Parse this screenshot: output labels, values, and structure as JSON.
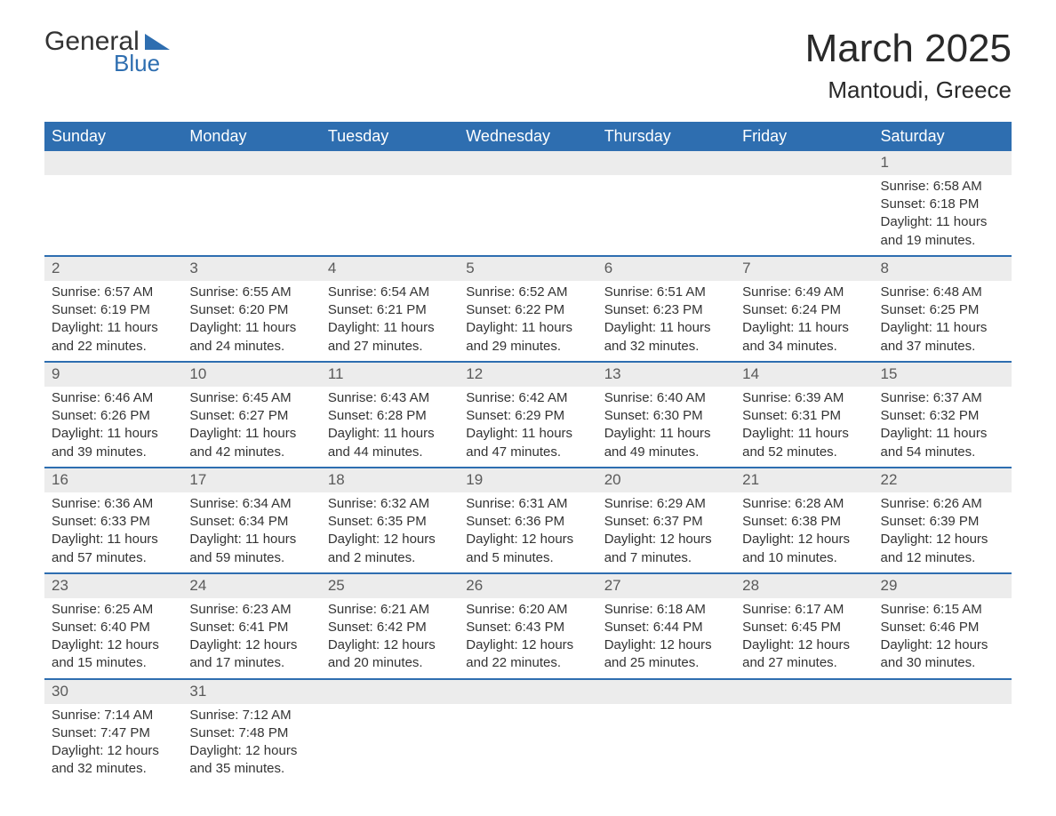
{
  "logo": {
    "text1": "General",
    "text2": "Blue"
  },
  "title": {
    "month": "March 2025",
    "location": "Mantoudi, Greece"
  },
  "colors": {
    "header_bg": "#2e6eb0",
    "header_text": "#ffffff",
    "daynum_bg": "#ececec",
    "row_divider": "#2e6eb0",
    "text": "#333333",
    "logo_accent": "#2e6eb0"
  },
  "day_headers": [
    "Sunday",
    "Monday",
    "Tuesday",
    "Wednesday",
    "Thursday",
    "Friday",
    "Saturday"
  ],
  "weeks": [
    [
      null,
      null,
      null,
      null,
      null,
      null,
      {
        "n": "1",
        "sr": "Sunrise: 6:58 AM",
        "ss": "Sunset: 6:18 PM",
        "dl": "Daylight: 11 hours and 19 minutes."
      }
    ],
    [
      {
        "n": "2",
        "sr": "Sunrise: 6:57 AM",
        "ss": "Sunset: 6:19 PM",
        "dl": "Daylight: 11 hours and 22 minutes."
      },
      {
        "n": "3",
        "sr": "Sunrise: 6:55 AM",
        "ss": "Sunset: 6:20 PM",
        "dl": "Daylight: 11 hours and 24 minutes."
      },
      {
        "n": "4",
        "sr": "Sunrise: 6:54 AM",
        "ss": "Sunset: 6:21 PM",
        "dl": "Daylight: 11 hours and 27 minutes."
      },
      {
        "n": "5",
        "sr": "Sunrise: 6:52 AM",
        "ss": "Sunset: 6:22 PM",
        "dl": "Daylight: 11 hours and 29 minutes."
      },
      {
        "n": "6",
        "sr": "Sunrise: 6:51 AM",
        "ss": "Sunset: 6:23 PM",
        "dl": "Daylight: 11 hours and 32 minutes."
      },
      {
        "n": "7",
        "sr": "Sunrise: 6:49 AM",
        "ss": "Sunset: 6:24 PM",
        "dl": "Daylight: 11 hours and 34 minutes."
      },
      {
        "n": "8",
        "sr": "Sunrise: 6:48 AM",
        "ss": "Sunset: 6:25 PM",
        "dl": "Daylight: 11 hours and 37 minutes."
      }
    ],
    [
      {
        "n": "9",
        "sr": "Sunrise: 6:46 AM",
        "ss": "Sunset: 6:26 PM",
        "dl": "Daylight: 11 hours and 39 minutes."
      },
      {
        "n": "10",
        "sr": "Sunrise: 6:45 AM",
        "ss": "Sunset: 6:27 PM",
        "dl": "Daylight: 11 hours and 42 minutes."
      },
      {
        "n": "11",
        "sr": "Sunrise: 6:43 AM",
        "ss": "Sunset: 6:28 PM",
        "dl": "Daylight: 11 hours and 44 minutes."
      },
      {
        "n": "12",
        "sr": "Sunrise: 6:42 AM",
        "ss": "Sunset: 6:29 PM",
        "dl": "Daylight: 11 hours and 47 minutes."
      },
      {
        "n": "13",
        "sr": "Sunrise: 6:40 AM",
        "ss": "Sunset: 6:30 PM",
        "dl": "Daylight: 11 hours and 49 minutes."
      },
      {
        "n": "14",
        "sr": "Sunrise: 6:39 AM",
        "ss": "Sunset: 6:31 PM",
        "dl": "Daylight: 11 hours and 52 minutes."
      },
      {
        "n": "15",
        "sr": "Sunrise: 6:37 AM",
        "ss": "Sunset: 6:32 PM",
        "dl": "Daylight: 11 hours and 54 minutes."
      }
    ],
    [
      {
        "n": "16",
        "sr": "Sunrise: 6:36 AM",
        "ss": "Sunset: 6:33 PM",
        "dl": "Daylight: 11 hours and 57 minutes."
      },
      {
        "n": "17",
        "sr": "Sunrise: 6:34 AM",
        "ss": "Sunset: 6:34 PM",
        "dl": "Daylight: 11 hours and 59 minutes."
      },
      {
        "n": "18",
        "sr": "Sunrise: 6:32 AM",
        "ss": "Sunset: 6:35 PM",
        "dl": "Daylight: 12 hours and 2 minutes."
      },
      {
        "n": "19",
        "sr": "Sunrise: 6:31 AM",
        "ss": "Sunset: 6:36 PM",
        "dl": "Daylight: 12 hours and 5 minutes."
      },
      {
        "n": "20",
        "sr": "Sunrise: 6:29 AM",
        "ss": "Sunset: 6:37 PM",
        "dl": "Daylight: 12 hours and 7 minutes."
      },
      {
        "n": "21",
        "sr": "Sunrise: 6:28 AM",
        "ss": "Sunset: 6:38 PM",
        "dl": "Daylight: 12 hours and 10 minutes."
      },
      {
        "n": "22",
        "sr": "Sunrise: 6:26 AM",
        "ss": "Sunset: 6:39 PM",
        "dl": "Daylight: 12 hours and 12 minutes."
      }
    ],
    [
      {
        "n": "23",
        "sr": "Sunrise: 6:25 AM",
        "ss": "Sunset: 6:40 PM",
        "dl": "Daylight: 12 hours and 15 minutes."
      },
      {
        "n": "24",
        "sr": "Sunrise: 6:23 AM",
        "ss": "Sunset: 6:41 PM",
        "dl": "Daylight: 12 hours and 17 minutes."
      },
      {
        "n": "25",
        "sr": "Sunrise: 6:21 AM",
        "ss": "Sunset: 6:42 PM",
        "dl": "Daylight: 12 hours and 20 minutes."
      },
      {
        "n": "26",
        "sr": "Sunrise: 6:20 AM",
        "ss": "Sunset: 6:43 PM",
        "dl": "Daylight: 12 hours and 22 minutes."
      },
      {
        "n": "27",
        "sr": "Sunrise: 6:18 AM",
        "ss": "Sunset: 6:44 PM",
        "dl": "Daylight: 12 hours and 25 minutes."
      },
      {
        "n": "28",
        "sr": "Sunrise: 6:17 AM",
        "ss": "Sunset: 6:45 PM",
        "dl": "Daylight: 12 hours and 27 minutes."
      },
      {
        "n": "29",
        "sr": "Sunrise: 6:15 AM",
        "ss": "Sunset: 6:46 PM",
        "dl": "Daylight: 12 hours and 30 minutes."
      }
    ],
    [
      {
        "n": "30",
        "sr": "Sunrise: 7:14 AM",
        "ss": "Sunset: 7:47 PM",
        "dl": "Daylight: 12 hours and 32 minutes."
      },
      {
        "n": "31",
        "sr": "Sunrise: 7:12 AM",
        "ss": "Sunset: 7:48 PM",
        "dl": "Daylight: 12 hours and 35 minutes."
      },
      null,
      null,
      null,
      null,
      null
    ]
  ]
}
